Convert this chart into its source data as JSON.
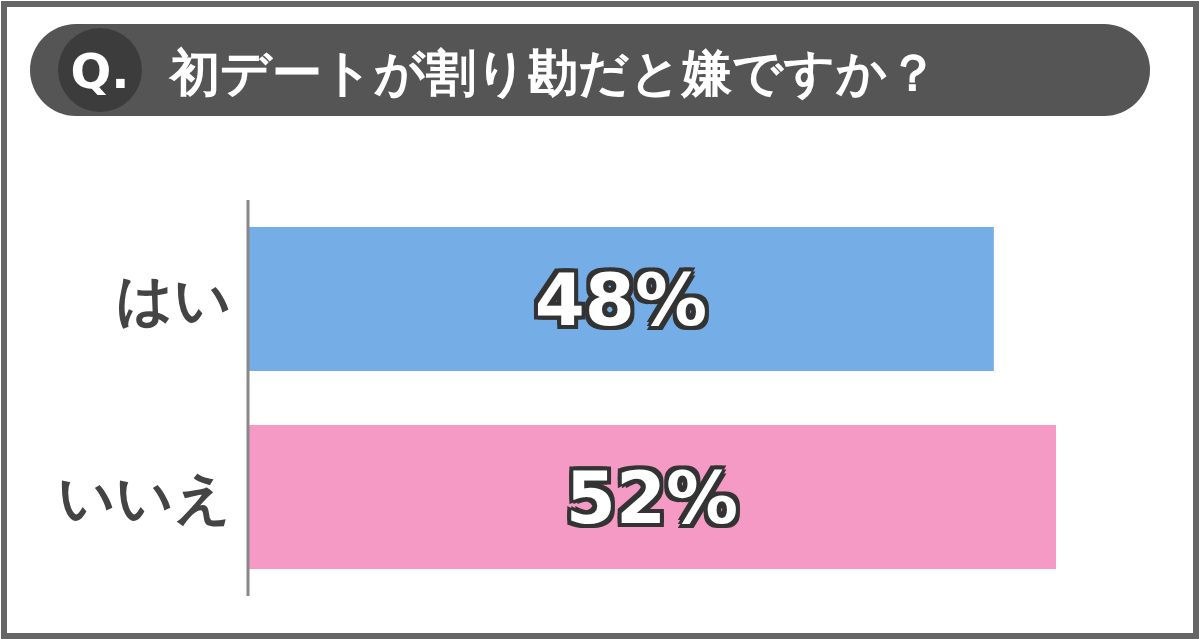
{
  "chart_data": {
    "type": "bar",
    "orientation": "horizontal",
    "title": "初デートが割り勘だと嫌ですか？",
    "annotations": [
      "Q."
    ],
    "categories": [
      "はい",
      "いいえ"
    ],
    "series": [
      {
        "colors": [
          "#75ade6",
          "#f49ac5"
        ],
        "values": [
          48,
          52
        ],
        "value_labels": [
          "48%",
          "52%"
        ]
      }
    ],
    "tick_labels": "y"
  }
}
